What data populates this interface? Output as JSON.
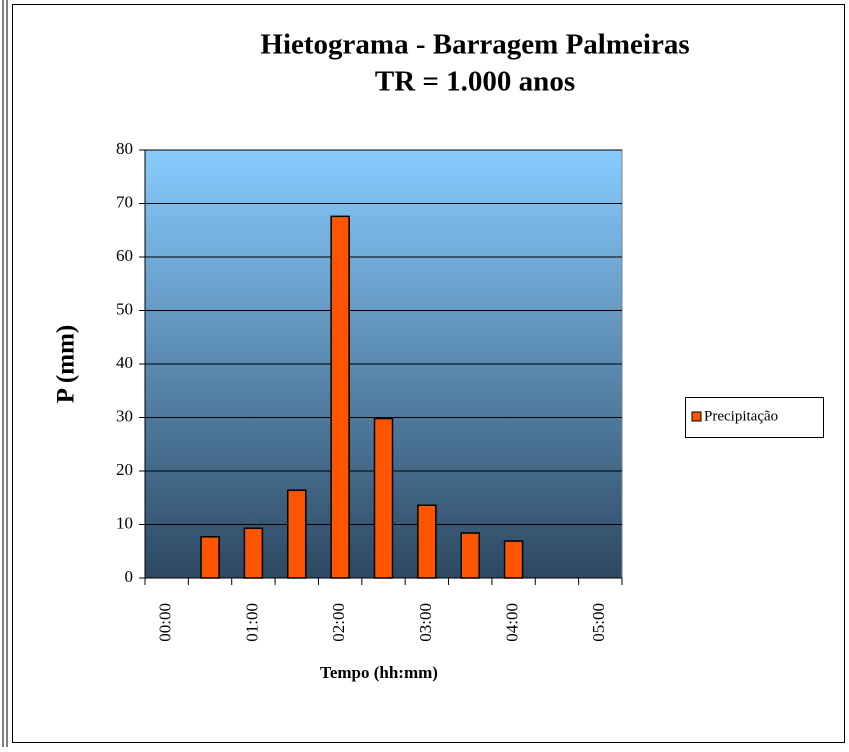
{
  "chart_data": {
    "type": "bar",
    "title": "Hietograma - Barragem Palmeiras",
    "subtitle": "TR = 1.000 anos",
    "y_label": "P (mm)",
    "x_label": "Tempo (hh:mm)",
    "categories": [
      "00:00",
      null,
      "01:00",
      null,
      "02:00",
      null,
      "03:00",
      null,
      "04:00",
      null,
      "05:00"
    ],
    "series": [
      {
        "name": "Precipitação",
        "color": "#ff5500",
        "values": [
          null,
          7.7,
          9.3,
          16.4,
          67.6,
          29.8,
          13.6,
          8.4,
          6.9,
          null,
          null
        ]
      }
    ],
    "ylim": [
      0,
      80
    ],
    "yticks": [
      0,
      10,
      20,
      30,
      40,
      50,
      60,
      70,
      80
    ],
    "grid": true,
    "legend": "right"
  }
}
